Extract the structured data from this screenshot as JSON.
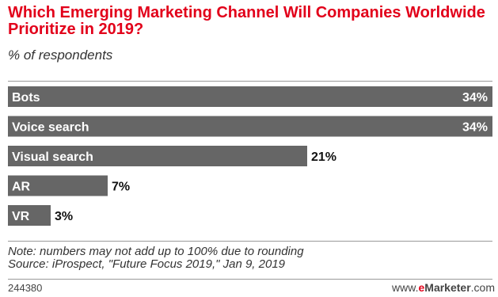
{
  "colors": {
    "title": "#e2001a",
    "bar": "#666666",
    "accent": "#e2001a",
    "text": "#111111"
  },
  "chart_data": {
    "type": "bar",
    "orientation": "horizontal",
    "title": "Which Emerging Marketing Channel Will Companies Worldwide Prioritize in 2019?",
    "subtitle": "% of respondents",
    "categories": [
      "Bots",
      "Voice search",
      "Visual search",
      "AR",
      "VR"
    ],
    "values": [
      34,
      34,
      21,
      7,
      3
    ],
    "value_labels": [
      "34%",
      "34%",
      "21%",
      "7%",
      "3%"
    ],
    "xlim": [
      0,
      34
    ],
    "grid": false,
    "legend": "none"
  },
  "footer": {
    "note": "Note: numbers may not add up to 100% due to rounding",
    "source": "Source: iProspect, \"Future Focus 2019,\" Jan 9, 2019",
    "id": "244380",
    "brand_prefix": "www.",
    "brand_accent": "e",
    "brand_name": "Marketer",
    "brand_suffix": ".com"
  }
}
